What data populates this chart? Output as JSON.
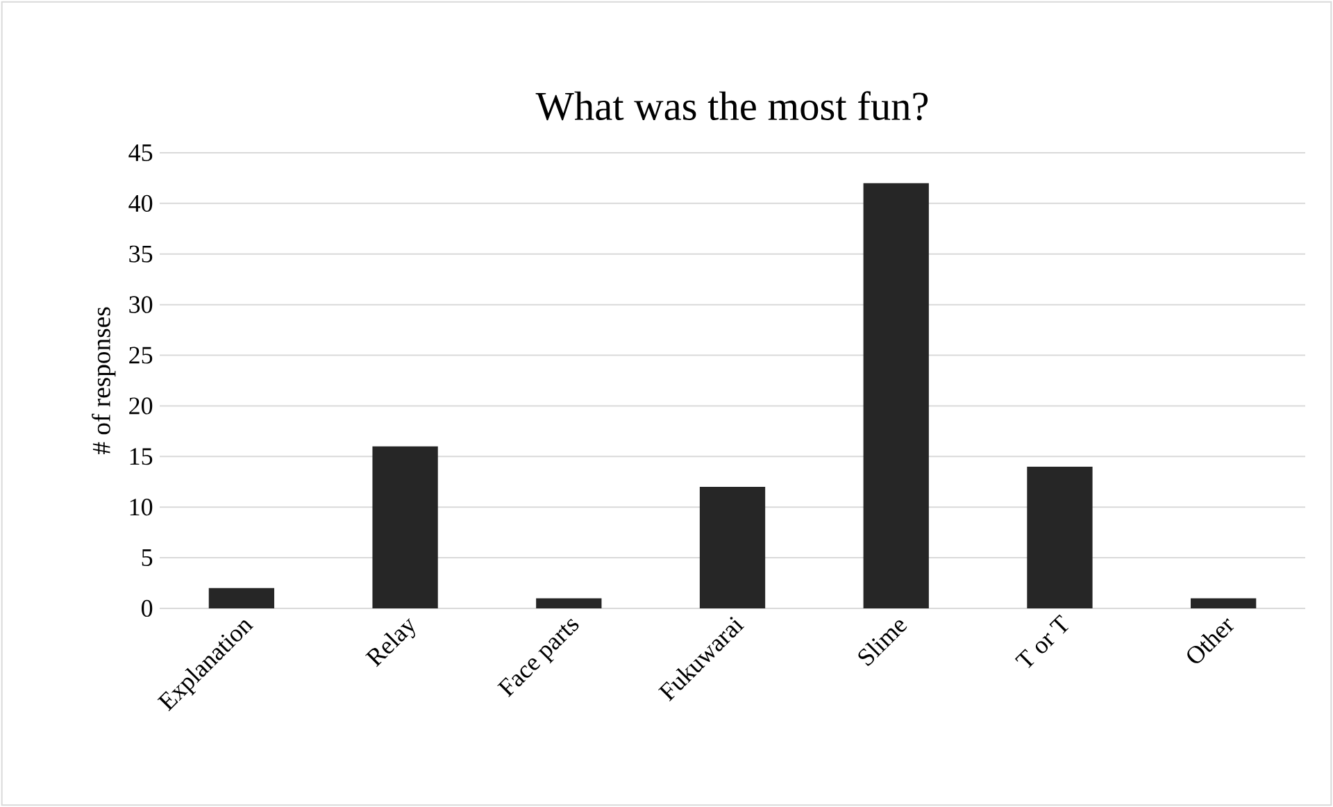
{
  "chart_data": {
    "type": "bar",
    "title": "What was the most fun?",
    "ylabel": "# of responses",
    "categories": [
      "Explanation",
      "Relay",
      "Face parts",
      "Fukuwarai",
      "Slime",
      "T or T",
      "Other"
    ],
    "values": [
      2,
      16,
      1,
      12,
      42,
      14,
      1
    ],
    "color": "#262626",
    "ylim": [
      0,
      45
    ],
    "yticks": [
      0,
      5,
      10,
      15,
      20,
      25,
      30,
      35,
      40,
      45
    ],
    "grid": "y"
  }
}
